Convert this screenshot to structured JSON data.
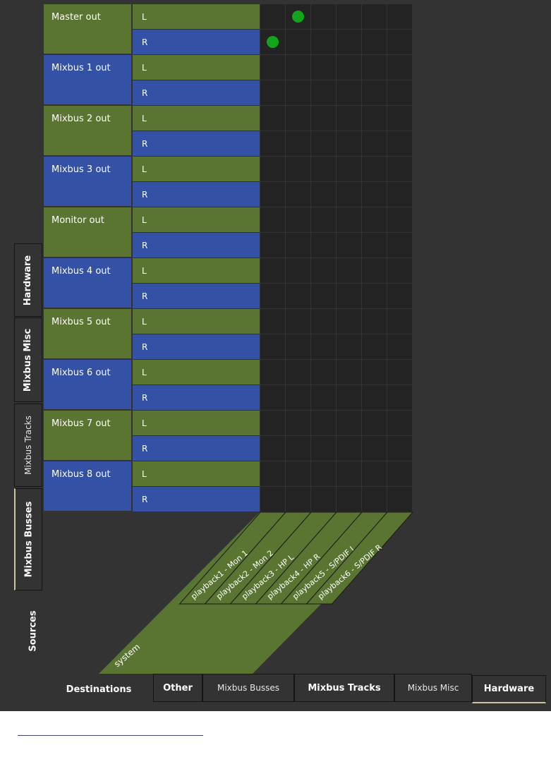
{
  "sources": {
    "rows": [
      {
        "name": "Master out",
        "color": "#5a7431"
      },
      {
        "name": "Mixbus 1 out",
        "color": "#3451a6"
      },
      {
        "name": "Mixbus 2 out",
        "color": "#5a7431"
      },
      {
        "name": "Mixbus 3 out",
        "color": "#3451a6"
      },
      {
        "name": "Monitor out",
        "color": "#5a7431"
      },
      {
        "name": "Mixbus 4 out",
        "color": "#3451a6"
      },
      {
        "name": "Mixbus 5 out",
        "color": "#5a7431"
      },
      {
        "name": "Mixbus 6 out",
        "color": "#3451a6"
      },
      {
        "name": "Mixbus 7 out",
        "color": "#5a7431"
      },
      {
        "name": "Mixbus 8 out",
        "color": "#3451a6"
      }
    ],
    "channels": [
      "L",
      "R"
    ],
    "tabs": [
      {
        "label": "Hardware",
        "active": false
      },
      {
        "label": "Mixbus Misc",
        "active": false
      },
      {
        "label": "Mixbus Tracks",
        "active": false
      },
      {
        "label": "Mixbus Busses",
        "active": true
      }
    ],
    "section_label": "Sources"
  },
  "destinations": {
    "group": "system",
    "ports": [
      "playback1 - Mon 1",
      "playback2 - Mon 2",
      "playback3 - HP L",
      "playback4 - HP R",
      "playback5 - S/PDIF L",
      "playback6 - S/PDIF R"
    ],
    "section_label": "Destinations",
    "tabs": [
      {
        "label": "Other",
        "active": false
      },
      {
        "label": "Mixbus Busses",
        "active": false
      },
      {
        "label": "Mixbus Tracks",
        "active": false
      },
      {
        "label": "Mixbus Misc",
        "active": false
      },
      {
        "label": "Hardware",
        "active": true
      }
    ]
  },
  "connections": [
    {
      "source": "Master out",
      "channel": "L",
      "port": "playback2 - Mon 2"
    },
    {
      "source": "Master out",
      "channel": "R",
      "port": "playback1 - Mon 1"
    }
  ],
  "colors": {
    "panel": "#333333",
    "grid_cell": "#232323",
    "connection_dot": "#13a41b",
    "destination_group": "#5a7431",
    "active_tab_underline": "#cfc4a0"
  }
}
